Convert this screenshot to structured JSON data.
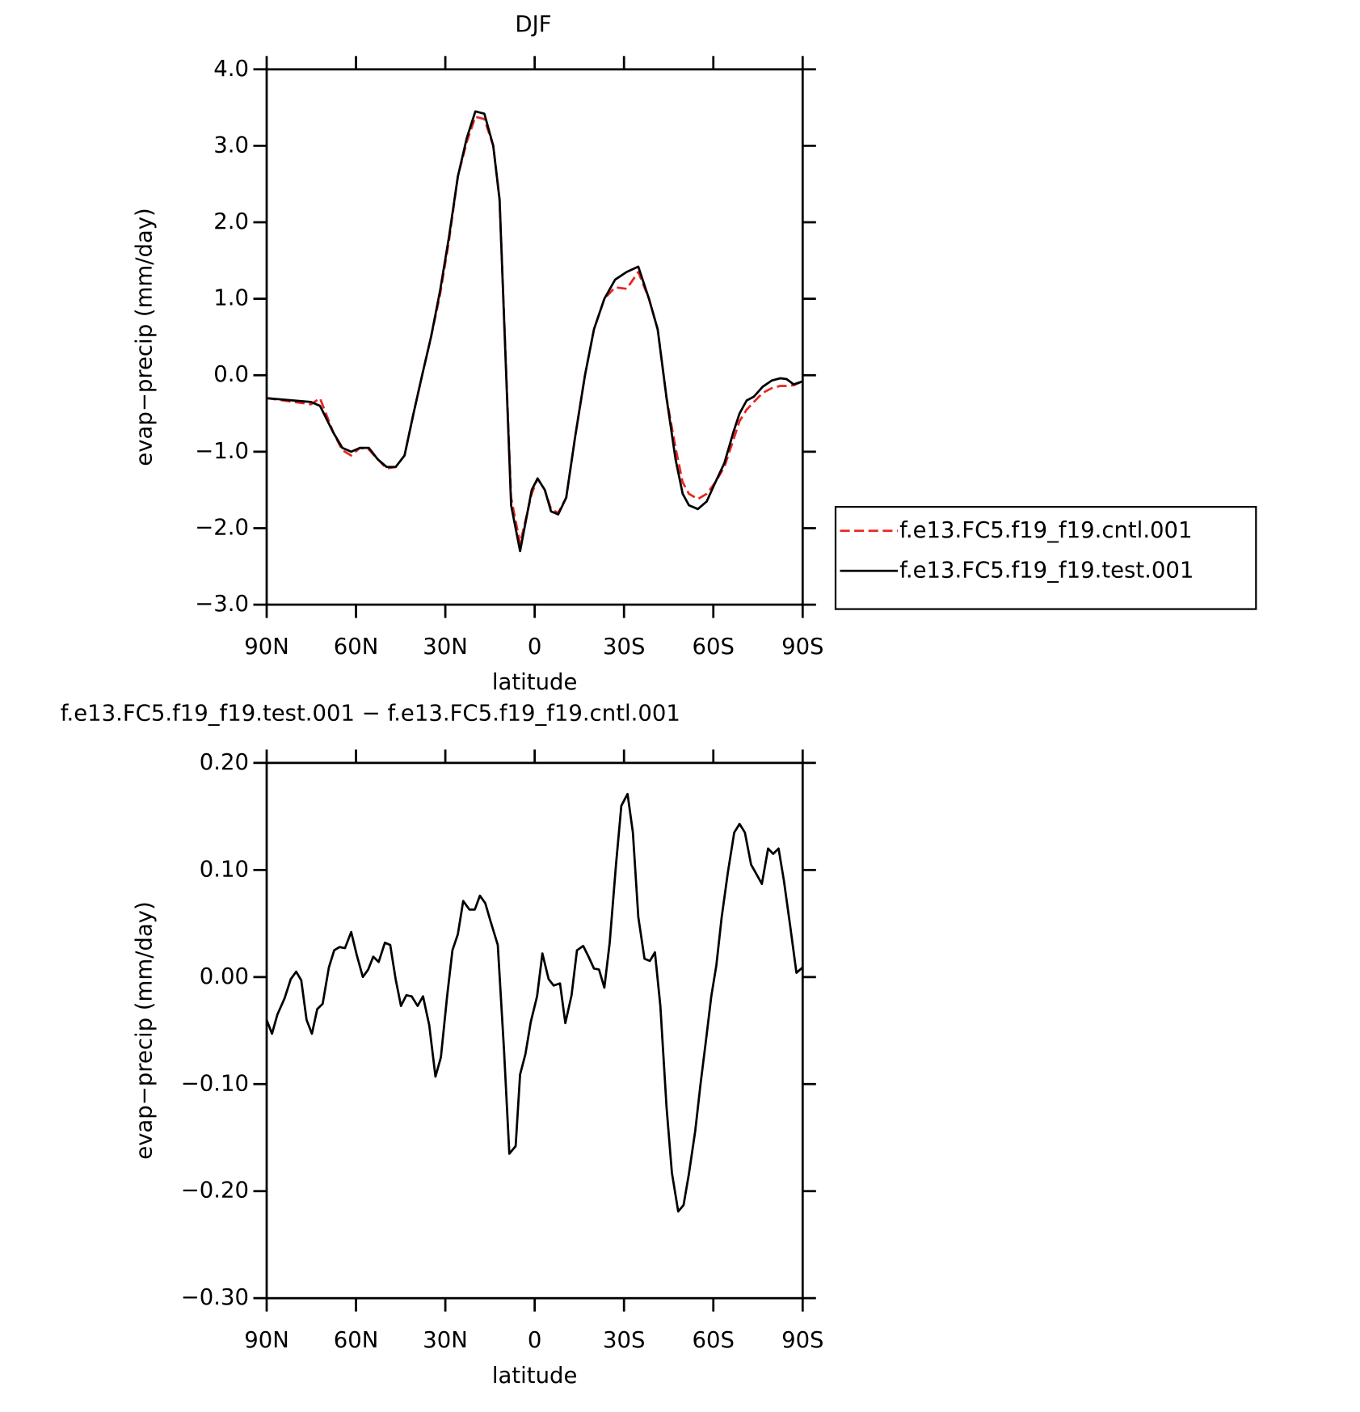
{
  "chart_data": [
    {
      "type": "line",
      "title": "DJF",
      "xlabel": "latitude",
      "ylabel": "evap−precip (mm/day)",
      "xlim": [
        90,
        -90
      ],
      "xticks": [
        {
          "value": 90,
          "label": "90N"
        },
        {
          "value": 60,
          "label": "60N"
        },
        {
          "value": 30,
          "label": "30N"
        },
        0,
        {
          "value": -30,
          "label": "30S"
        },
        {
          "value": -60,
          "label": "60S"
        },
        {
          "value": -90,
          "label": "90S"
        }
      ],
      "ylim": [
        -3,
        4
      ],
      "yticks": [
        {
          "value": 4,
          "label": "4.0"
        },
        {
          "value": 3,
          "label": "3.0"
        },
        {
          "value": 2,
          "label": "2.0"
        },
        {
          "value": 1,
          "label": "1.0"
        },
        {
          "value": 0,
          "label": "0.0"
        },
        {
          "value": -1,
          "label": "−1.0"
        },
        {
          "value": -2,
          "label": "−2.0"
        },
        {
          "value": -3,
          "label": "−3.0"
        }
      ],
      "legend": "outside-right",
      "x": [
        90,
        75.1,
        72.1,
        67.6,
        64.6,
        61.6,
        58.7,
        55.7,
        52.7,
        49.7,
        46.7,
        43.7,
        40.7,
        37.8,
        34.8,
        31.8,
        28.8,
        25.8,
        22.8,
        19.9,
        16.9,
        13.9,
        11.8,
        7.9,
        4.9,
        1.0,
        -1.0,
        -3.4,
        -5.5,
        -7.9,
        -10.6,
        -13.6,
        -16.9,
        -19.9,
        -23.4,
        -27.0,
        -30.9,
        -34.8,
        -38.4,
        -41.3,
        -44.3,
        -47.3,
        -49.7,
        -51.8,
        -54.8,
        -57.8,
        -60.7,
        -63.7,
        -66.7,
        -68.8,
        -71.2,
        -73.6,
        -76.6,
        -79.6,
        -82.5,
        -84.6,
        -87.0,
        -90
      ],
      "series": [
        {
          "name": "f.e13.FC5.f19_f19.cntl.001",
          "color": "#e8261f",
          "dashed": true,
          "values": [
            -0.3,
            -0.38,
            -0.3,
            -0.75,
            -0.98,
            -1.05,
            -0.95,
            -0.97,
            -1.1,
            -1.22,
            -1.2,
            -1.05,
            -0.5,
            0.0,
            0.5,
            1.05,
            1.75,
            2.6,
            3.05,
            3.38,
            3.35,
            3.0,
            2.3,
            -1.6,
            -2.2,
            -1.55,
            -1.35,
            -1.5,
            -1.75,
            -1.8,
            -1.6,
            -0.8,
            0.0,
            0.6,
            1.0,
            1.15,
            1.13,
            1.35,
            1.0,
            0.6,
            -0.3,
            -0.95,
            -1.4,
            -1.55,
            -1.62,
            -1.55,
            -1.4,
            -1.2,
            -0.85,
            -0.6,
            -0.45,
            -0.35,
            -0.23,
            -0.17,
            -0.14,
            -0.14,
            -0.13,
            -0.08
          ]
        },
        {
          "name": "f.e13.FC5.f19_f19.test.001",
          "color": "#000000",
          "dashed": false,
          "values": [
            -0.3,
            -0.35,
            -0.4,
            -0.75,
            -0.95,
            -1.0,
            -0.95,
            -0.95,
            -1.1,
            -1.2,
            -1.2,
            -1.05,
            -0.5,
            0.0,
            0.5,
            1.1,
            1.8,
            2.6,
            3.1,
            3.45,
            3.42,
            3.0,
            2.3,
            -1.7,
            -2.3,
            -1.5,
            -1.35,
            -1.5,
            -1.78,
            -1.82,
            -1.6,
            -0.8,
            0.0,
            0.6,
            1.0,
            1.25,
            1.35,
            1.42,
            1.0,
            0.6,
            -0.3,
            -1.1,
            -1.55,
            -1.7,
            -1.75,
            -1.65,
            -1.4,
            -1.15,
            -0.75,
            -0.5,
            -0.33,
            -0.28,
            -0.15,
            -0.07,
            -0.04,
            -0.05,
            -0.12,
            -0.08
          ]
        }
      ]
    },
    {
      "type": "line",
      "title": "f.e13.FC5.f19_f19.test.001 − f.e13.FC5.f19_f19.cntl.001",
      "xlabel": "latitude",
      "ylabel": "evap−precip (mm/day)",
      "xlim": [
        90,
        -90
      ],
      "xticks": [
        {
          "value": 90,
          "label": "90N"
        },
        {
          "value": 60,
          "label": "60N"
        },
        {
          "value": 30,
          "label": "30N"
        },
        0,
        {
          "value": -30,
          "label": "30S"
        },
        {
          "value": -60,
          "label": "60S"
        },
        {
          "value": -90,
          "label": "90S"
        }
      ],
      "ylim": [
        -0.3,
        0.2
      ],
      "yticks": [
        {
          "value": 0.2,
          "label": "0.20"
        },
        {
          "value": 0.1,
          "label": "0.10"
        },
        {
          "value": 0,
          "label": "0.00"
        },
        {
          "value": -0.1,
          "label": "−0.10"
        },
        {
          "value": -0.2,
          "label": "−0.20"
        },
        {
          "value": -0.3,
          "label": "−0.30"
        }
      ],
      "x": [
        90,
        88.2,
        86.4,
        84.0,
        81.9,
        80.1,
        78.4,
        76.6,
        74.8,
        73.0,
        71.2,
        69.1,
        67.3,
        65.5,
        63.7,
        61.6,
        59.8,
        57.7,
        55.9,
        54.2,
        52.4,
        50.3,
        48.5,
        46.7,
        44.9,
        43.1,
        41.3,
        39.3,
        37.5,
        35.4,
        33.3,
        31.5,
        29.4,
        27.6,
        25.8,
        24.0,
        21.9,
        20.1,
        18.4,
        16.6,
        14.8,
        12.4,
        10.3,
        8.5,
        6.4,
        4.9,
        3.1,
        1.3,
        -0.8,
        -2.6,
        -4.7,
        -6.4,
        -8.5,
        -10.3,
        -12.4,
        -14.2,
        -16.3,
        -18.1,
        -19.9,
        -21.6,
        -23.4,
        -25.2,
        -27.3,
        -29.1,
        -31.2,
        -33.0,
        -34.8,
        -36.9,
        -38.7,
        -40.4,
        -42.2,
        -44.3,
        -46.1,
        -48.2,
        -50.0,
        -51.8,
        -53.9,
        -55.7,
        -57.5,
        -59.3,
        -61.0,
        -62.8,
        -64.9,
        -67.0,
        -68.8,
        -70.6,
        -72.7,
        -74.5,
        -76.3,
        -78.4,
        -80.1,
        -81.9,
        -83.7,
        -85.8,
        -87.9,
        -90
      ],
      "series": [
        {
          "color": "#000000",
          "dashed": false,
          "values": [
            -0.04,
            -0.053,
            -0.035,
            -0.02,
            -0.002,
            0.005,
            -0.003,
            -0.04,
            -0.053,
            -0.03,
            -0.025,
            0.009,
            0.025,
            0.028,
            0.027,
            0.042,
            0.021,
            0.0,
            0.007,
            0.019,
            0.014,
            0.032,
            0.03,
            -0.002,
            -0.027,
            -0.017,
            -0.018,
            -0.027,
            -0.018,
            -0.045,
            -0.093,
            -0.075,
            -0.018,
            0.025,
            0.04,
            0.071,
            0.063,
            0.063,
            0.076,
            0.069,
            0.052,
            0.03,
            -0.068,
            -0.165,
            -0.158,
            -0.091,
            -0.072,
            -0.042,
            -0.018,
            0.022,
            -0.002,
            -0.008,
            -0.006,
            -0.043,
            -0.017,
            0.025,
            0.029,
            0.019,
            0.008,
            0.007,
            -0.01,
            0.032,
            0.105,
            0.16,
            0.171,
            0.135,
            0.056,
            0.017,
            0.015,
            0.023,
            -0.027,
            -0.122,
            -0.183,
            -0.219,
            -0.213,
            -0.184,
            -0.144,
            -0.1,
            -0.06,
            -0.018,
            0.011,
            0.056,
            0.098,
            0.135,
            0.143,
            0.135,
            0.105,
            0.096,
            0.087,
            0.12,
            0.115,
            0.12,
            0.09,
            0.048,
            0.004,
            0.009
          ]
        }
      ]
    }
  ]
}
